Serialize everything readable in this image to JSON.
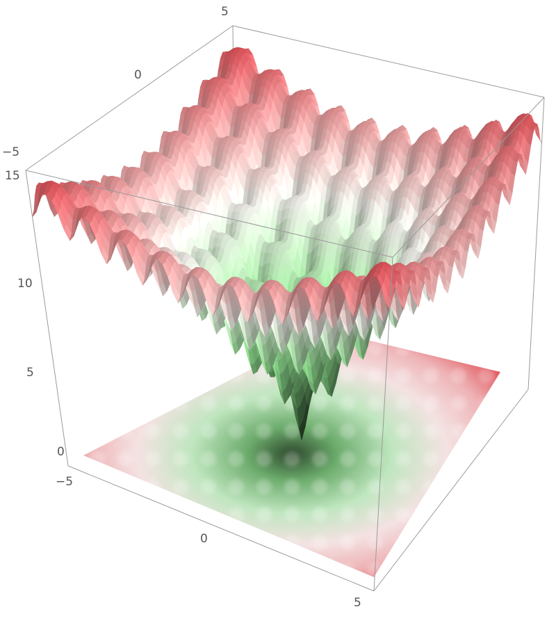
{
  "chart_data": {
    "type": "surface3d",
    "title": "",
    "xlabel": "",
    "ylabel": "",
    "zlabel": "",
    "x_range": [
      -5,
      5
    ],
    "y_range": [
      -5,
      5
    ],
    "z_range": [
      0,
      15
    ],
    "x_ticks": [
      {
        "value": -5,
        "label": "−5"
      },
      {
        "value": 0,
        "label": "0"
      },
      {
        "value": 5,
        "label": "5"
      }
    ],
    "y_ticks": [
      {
        "value": -5,
        "label": "−5"
      },
      {
        "value": 0,
        "label": "0"
      },
      {
        "value": 5,
        "label": "5"
      }
    ],
    "z_ticks": [
      {
        "value": 0,
        "label": "0"
      },
      {
        "value": 5,
        "label": "5"
      },
      {
        "value": 10,
        "label": "10"
      },
      {
        "value": 15,
        "label": "15"
      }
    ],
    "surface": {
      "function": "Ackley-like: -20*exp(-0.2*sqrt((x^2+y^2)/2)) - exp((cos(2*pi*x)+cos(2*pi*y))/2) + e + 20",
      "min_value": 0,
      "max_value": 14.7,
      "colors": {
        "low": "#1f3a1f",
        "mid_low": "#8fdc8f",
        "mid": "#f4f4ee",
        "high": "#e04850"
      }
    },
    "floor_density_plot": true,
    "grid": false,
    "box": true
  }
}
